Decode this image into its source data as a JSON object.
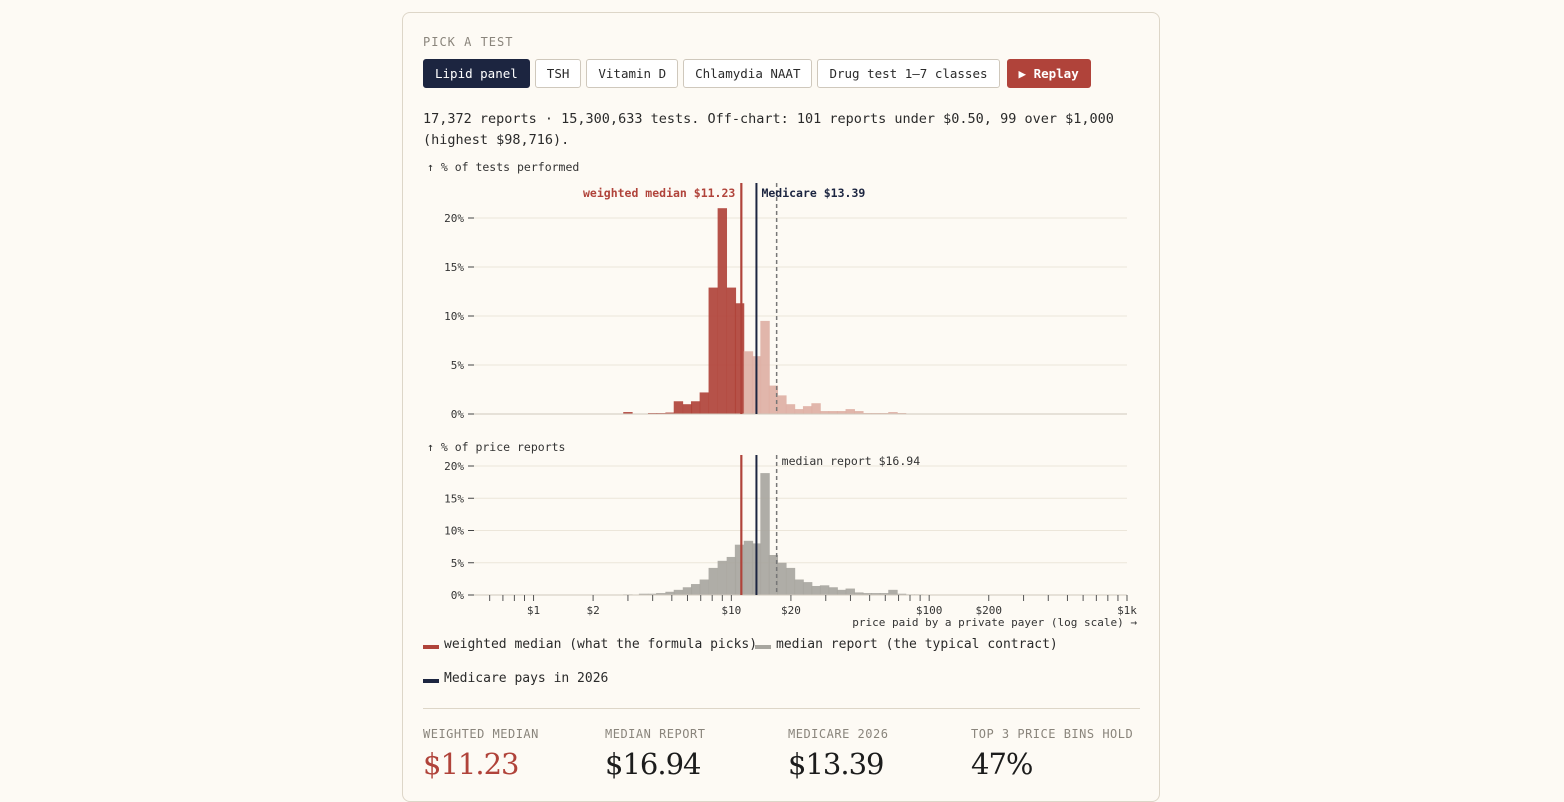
{
  "picker": {
    "label": "PICK A TEST",
    "tests": [
      "Lipid panel",
      "TSH",
      "Vitamin D",
      "Chlamydia NAAT",
      "Drug test 1–7 classes"
    ],
    "active_test": "Lipid panel",
    "replay_label": "▶ Replay",
    "replay_icon": "play-icon"
  },
  "summary": "17,372 reports · 15,300,633 tests. Off-chart: 101 reports under $0.50, 99 over $1,000 (highest $98,716).",
  "colors": {
    "weighted": "#b0433a",
    "weighted_light": "#deb0a4",
    "reports": "#a8a69f",
    "medicare": "#1c2540",
    "median_line": "#777777"
  },
  "chart_data": [
    {
      "type": "bar",
      "ylabel": "↑ % of tests performed",
      "yticks": [
        "20%",
        "15%",
        "10%",
        "5%",
        "0%"
      ],
      "ylim": [
        0,
        20
      ],
      "x_scale": "log",
      "x": [
        3.0,
        3.6,
        4.0,
        4.4,
        4.9,
        5.4,
        6.0,
        6.6,
        7.3,
        8.1,
        9.0,
        10.0,
        11.0,
        12.2,
        13.4,
        14.8,
        16.3,
        18.0,
        19.9,
        22.0,
        24.3,
        26.8,
        29.6,
        32.7,
        36.1,
        39.9,
        44.1,
        48.7,
        53.8,
        59.4,
        65.6,
        72.5,
        80.1,
        88.5,
        97.7,
        107.9,
        119.2,
        131.6,
        145.4,
        160.6
      ],
      "values": [
        0.2,
        0.05,
        0.1,
        0.1,
        0.15,
        1.3,
        1.0,
        1.3,
        2.2,
        12.9,
        21.0,
        12.9,
        11.3,
        6.4,
        5.9,
        9.5,
        2.9,
        1.9,
        1.0,
        0.5,
        0.8,
        1.1,
        0.3,
        0.3,
        0.3,
        0.5,
        0.3,
        0.1,
        0.1,
        0.1,
        0.2,
        0.1,
        0.05,
        0.05,
        0.05,
        0.05,
        0.05,
        0.05,
        0.05,
        0.05
      ],
      "annotations": [
        "weighted median $11.23",
        "Medicare $13.39"
      ]
    },
    {
      "type": "bar",
      "ylabel": "↑ % of price reports",
      "yticks": [
        "20%",
        "15%",
        "10%",
        "5%",
        "0%"
      ],
      "ylim": [
        0,
        20
      ],
      "x_scale": "log",
      "xticks": [
        "$1",
        "$2",
        "$10",
        "$20",
        "$100",
        "$200",
        "$1k"
      ],
      "xlabel": "price paid by a private payer (log scale) →",
      "x": [
        0.8,
        1.6,
        2.0,
        3.0,
        3.6,
        4.0,
        4.4,
        4.9,
        5.4,
        6.0,
        6.6,
        7.3,
        8.1,
        9.0,
        10.0,
        11.0,
        12.2,
        13.4,
        14.8,
        16.3,
        18.0,
        19.9,
        22.0,
        24.3,
        26.8,
        29.6,
        32.7,
        36.1,
        39.9,
        44.1,
        48.7,
        53.8,
        59.4,
        65.6,
        72.5,
        80.1,
        88.5,
        97.7,
        107.9,
        119.2,
        131.6,
        145.4,
        160.6
      ],
      "values": [
        0.05,
        0.05,
        0.05,
        0.1,
        0.2,
        0.2,
        0.3,
        0.5,
        0.8,
        1.2,
        1.7,
        2.4,
        4.2,
        5.3,
        5.9,
        7.8,
        8.4,
        8.0,
        18.9,
        6.2,
        5.0,
        4.2,
        2.4,
        2.0,
        1.4,
        1.5,
        1.2,
        0.8,
        1.0,
        0.4,
        0.3,
        0.3,
        0.3,
        0.8,
        0.2,
        0.1,
        0.1,
        0.05,
        0.05,
        0.05,
        0.05,
        0.05,
        0.05
      ],
      "annotations": [
        "median report $16.94"
      ]
    }
  ],
  "markers": {
    "weighted_median": 11.23,
    "medicare": 13.39,
    "median_report": 16.94
  },
  "legend": [
    "weighted median (what the formula picks)",
    "median report (the typical contract)",
    "Medicare pays in 2026"
  ],
  "stats": [
    {
      "label": "WEIGHTED MEDIAN",
      "value": "$11.23"
    },
    {
      "label": "MEDIAN REPORT",
      "value": "$16.94"
    },
    {
      "label": "MEDICARE 2026",
      "value": "$13.39"
    },
    {
      "label": "TOP 3 PRICE BINS HOLD",
      "value": "47%"
    }
  ]
}
